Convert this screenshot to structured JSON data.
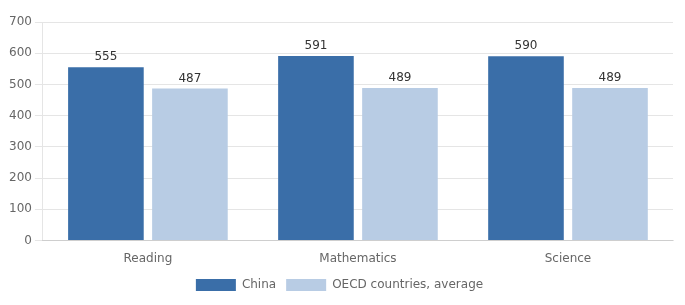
{
  "chart_data": {
    "type": "bar",
    "categories": [
      "Reading",
      "Mathematics",
      "Science"
    ],
    "series": [
      {
        "name": "China",
        "color": "#3A6EA8",
        "values": [
          555,
          591,
          590
        ]
      },
      {
        "name": "OECD countries, average",
        "color": "#B8CCE4",
        "values": [
          487,
          489,
          489
        ]
      }
    ],
    "ylim": [
      0,
      700
    ],
    "yticks": [
      0,
      100,
      200,
      300,
      400,
      500,
      600,
      700
    ],
    "grid": true,
    "legend": "bottom",
    "data_labels": true
  }
}
